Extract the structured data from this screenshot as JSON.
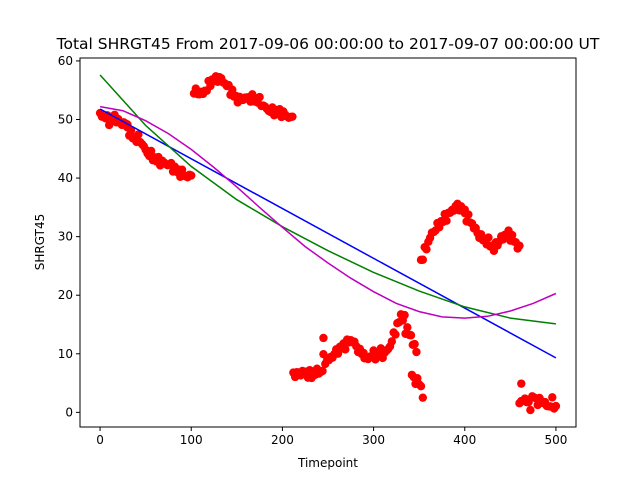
{
  "chart_data": {
    "type": "scatter",
    "title": "Total SHRGT45 From 2017-09-06 00:00:00 to 2017-09-07 00:00:00 UT",
    "xlabel": "Timepoint",
    "ylabel": "SHRGT45",
    "xlim": [
      -22,
      522
    ],
    "ylim": [
      -2.5,
      60.5
    ],
    "xticks": [
      0,
      100,
      200,
      300,
      400,
      500
    ],
    "yticks": [
      0,
      10,
      20,
      30,
      40,
      50,
      60
    ],
    "grid": false,
    "legend": "none",
    "scatter_color": "#ff0000",
    "scatter_segments": [
      {
        "x0": 0,
        "x1": 30,
        "y": [
          50.8,
          50.6,
          50.3,
          49.8,
          50.2,
          50.5,
          49.6,
          49.3,
          49.5,
          48.9
        ]
      },
      {
        "x0": 30,
        "x1": 100,
        "y": [
          48.4,
          47.4,
          46.6,
          46.8,
          45.4,
          44.3,
          43.9,
          43.2,
          42.9,
          42.6,
          42.4,
          42.1,
          41.4,
          41.0,
          40.7,
          40.2,
          40.4
        ]
      },
      {
        "x0": 103,
        "x1": 212,
        "y": [
          54.8,
          54.6,
          54.3,
          55.2,
          56.4,
          56.8,
          57.1,
          56.6,
          55.7,
          54.8,
          53.8,
          53.3,
          53.6,
          53.7,
          53.6,
          53.4,
          53.1,
          52.1,
          51.6,
          51.4,
          51.3,
          51.2,
          50.8,
          50.4,
          50.1
        ]
      },
      {
        "x0": 212,
        "x1": 245,
        "y": [
          6.6,
          6.4,
          6.7,
          6.9,
          6.5,
          6.3,
          6.8,
          7.1,
          6.6
        ]
      },
      {
        "x0": 245,
        "x1": 290,
        "y": [
          9.2,
          8.6,
          9.5,
          10.2,
          10.9,
          11.3,
          12.0,
          12.4,
          11.2,
          10.3,
          9.8
        ]
      },
      {
        "x0": 290,
        "x1": 335,
        "y": [
          9.4,
          9.0,
          10.1,
          9.5,
          10.6,
          9.8,
          10.4,
          11.6,
          13.4,
          15.2,
          16.6,
          15.9
        ]
      },
      {
        "x0": 335,
        "x1": 345,
        "y": [
          13.5,
          14.5,
          12.0,
          11.5
        ]
      },
      {
        "x0": 342,
        "x1": 355,
        "y": [
          6.2,
          5.4,
          5.0,
          2.5
        ]
      },
      {
        "x0": 352,
        "x1": 400,
        "y": [
          25.8,
          27.6,
          29.4,
          30.8,
          31.6,
          32.4,
          33.2,
          33.8,
          34.6,
          35.3,
          34.9,
          34.2
        ]
      },
      {
        "x0": 400,
        "x1": 432,
        "y": [
          33.6,
          33.1,
          32.2,
          31.1,
          30.2,
          29.6,
          29.2,
          28.9,
          27.7
        ]
      },
      {
        "x0": 432,
        "x1": 460,
        "y": [
          28.4,
          28.9,
          29.6,
          30.2,
          30.4,
          29.8,
          28.8,
          28.1
        ]
      },
      {
        "x0": 460,
        "x1": 500,
        "y": [
          1.2,
          2.4,
          1.8,
          1.1,
          2.9,
          1.6,
          2.2,
          1.4,
          1.0,
          1.8,
          0.8
        ]
      }
    ],
    "extra_points": [
      {
        "x": 245,
        "y": 12.7
      },
      {
        "x": 462,
        "y": 4.9
      },
      {
        "x": 347,
        "y": 10.3
      }
    ],
    "fit_lines": [
      {
        "color": "#0000ff",
        "x": [
          0,
          500
        ],
        "y": [
          51.8,
          9.3
        ]
      },
      {
        "color": "#008000",
        "x": [
          0,
          50,
          100,
          150,
          200,
          250,
          300,
          350,
          400,
          450,
          500
        ],
        "y": [
          57.6,
          49.0,
          42.0,
          36.3,
          31.7,
          27.6,
          23.9,
          20.7,
          18.0,
          16.1,
          15.1
        ]
      },
      {
        "color": "#bf00bf",
        "x": [
          0,
          25,
          50,
          75,
          100,
          125,
          150,
          175,
          200,
          225,
          250,
          275,
          300,
          325,
          350,
          375,
          400,
          425,
          450,
          475,
          500
        ],
        "y": [
          52.2,
          51.5,
          49.8,
          47.6,
          44.9,
          41.8,
          38.5,
          35.0,
          31.6,
          28.3,
          25.5,
          22.9,
          20.6,
          18.6,
          17.2,
          16.3,
          16.1,
          16.4,
          17.3,
          18.6,
          20.3
        ]
      }
    ]
  }
}
